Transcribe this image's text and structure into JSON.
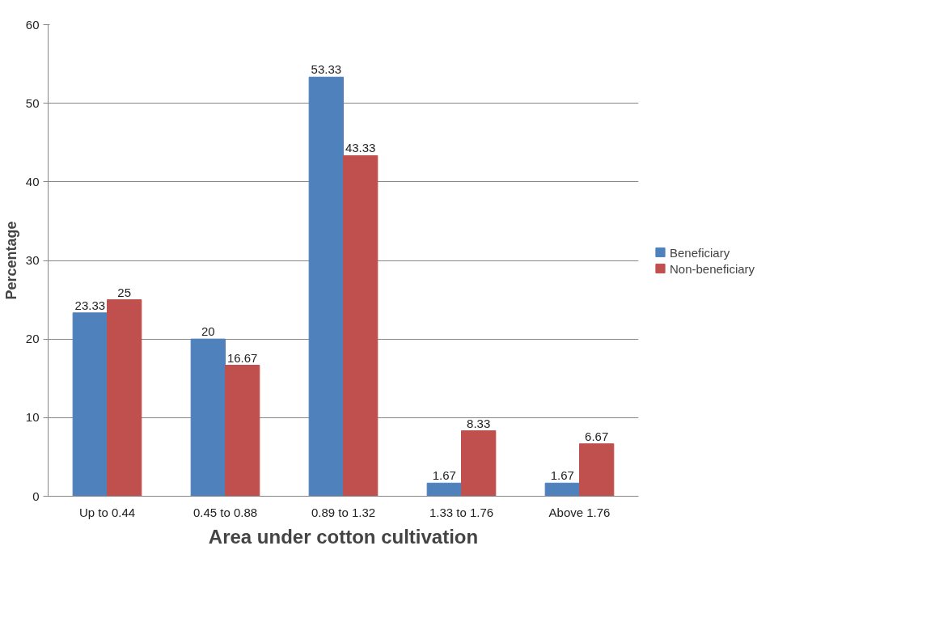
{
  "chart_data": {
    "type": "bar",
    "xlabel": "Area under cotton cultivation",
    "ylabel": "Percentage",
    "categories": [
      "Up to 0.44",
      "0.45 to 0.88",
      "0.89 to 1.32",
      "1.33 to 1.76",
      "Above 1.76"
    ],
    "series": [
      {
        "name": "Beneficiary",
        "color": "#4f81bd",
        "values": [
          23.33,
          20,
          53.33,
          1.67,
          1.67
        ]
      },
      {
        "name": "Non-beneficiary",
        "color": "#c0504d",
        "values": [
          25,
          16.67,
          43.33,
          8.33,
          6.67
        ]
      }
    ],
    "ylim": [
      0,
      60
    ],
    "yticks": [
      0,
      10,
      20,
      30,
      40,
      50,
      60
    ],
    "grid": "y",
    "legend": "right",
    "data_labels": true
  }
}
